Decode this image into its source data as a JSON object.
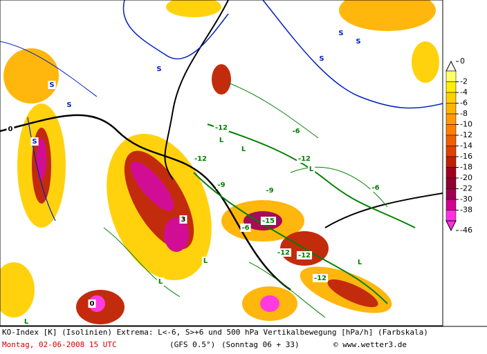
{
  "map": {
    "labels": [
      "S",
      "S",
      "S",
      "S",
      "S",
      "S",
      "S",
      "L",
      "L",
      "L",
      "L",
      "L",
      "L",
      "L",
      "-12",
      "-12",
      "-12",
      "-12",
      "-12",
      "-12",
      "-6",
      "-6",
      "-6",
      "0",
      "0",
      "3",
      "-15",
      "-9",
      "-9"
    ],
    "colorbar": {
      "ticks": [
        0,
        -2,
        -4,
        -6,
        -8,
        -10,
        -12,
        -14,
        -16,
        -18,
        -20,
        -22,
        -30,
        -38,
        -46
      ],
      "colors": [
        "#ffff66",
        "#ffee00",
        "#ffd000",
        "#ffb400",
        "#ff9a00",
        "#ff8000",
        "#f06000",
        "#e04000",
        "#c02000",
        "#a00020",
        "#900030",
        "#a00050",
        "#d00090",
        "#ff30e0"
      ]
    }
  },
  "footer": {
    "line1": "KO-Index [K] (Isolinien) Extrema: L<-6, S>+6 und 500 hPa Vertikalbewegung [hPa/h] (Farbskala)",
    "date": "Montag, 02-06-2008  15 UTC",
    "model": "(GFS 0.5°)",
    "run": "(Sonntag 06 + 33)",
    "credit": "© www.wetter3.de"
  }
}
